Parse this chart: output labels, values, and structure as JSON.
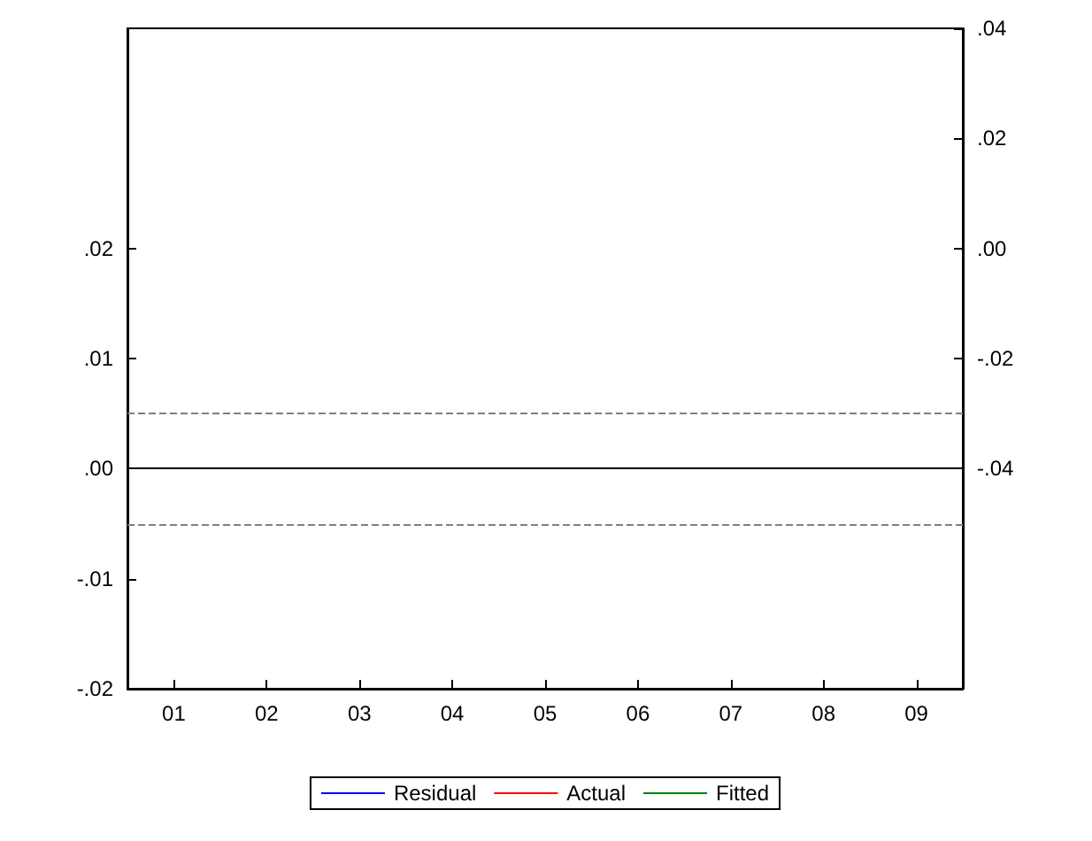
{
  "chart_data": {
    "type": "line",
    "categories": [
      "01",
      "02",
      "03",
      "04",
      "05",
      "06",
      "07",
      "08",
      "09"
    ],
    "series": [
      {
        "name": "Residual",
        "color": "#0000ff",
        "values": [
          null,
          null,
          null,
          null,
          null,
          null,
          null,
          null,
          null
        ]
      },
      {
        "name": "Actual",
        "color": "#ff0000",
        "values": [
          null,
          null,
          null,
          null,
          null,
          null,
          null,
          null,
          null
        ]
      },
      {
        "name": "Fitted",
        "color": "#008000",
        "values": [
          null,
          null,
          null,
          null,
          null,
          null,
          null,
          null,
          null
        ]
      }
    ],
    "ylim": [
      -0.02,
      0.04
    ],
    "yticks": [
      {
        "value": -0.02,
        "label": "-.02"
      },
      {
        "value": -0.01,
        "label": "-.01"
      },
      {
        "value": 0,
        "label": ".00"
      },
      {
        "value": 0.01,
        "label": ".01"
      },
      {
        "value": 0.02,
        "label": ".02"
      }
    ],
    "y2lim": [
      -0.08,
      0.04
    ],
    "y2ticks": [
      {
        "value": -0.04,
        "label": "-.04"
      },
      {
        "value": -0.02,
        "label": "-.02"
      },
      {
        "value": 0,
        "label": ".00"
      },
      {
        "value": 0.02,
        "label": ".02"
      },
      {
        "value": 0.04,
        "label": ".04"
      }
    ],
    "ref_lines": [
      {
        "axis": "y",
        "value": 0,
        "color": "#000000",
        "line_style": "solid"
      },
      {
        "axis": "y",
        "value": 0.005,
        "color": "#808080",
        "line_style": "dashed"
      },
      {
        "axis": "y",
        "value": -0.005,
        "color": "#808080",
        "line_style": "dashed"
      }
    ],
    "grid": false,
    "legend": "bottom"
  }
}
